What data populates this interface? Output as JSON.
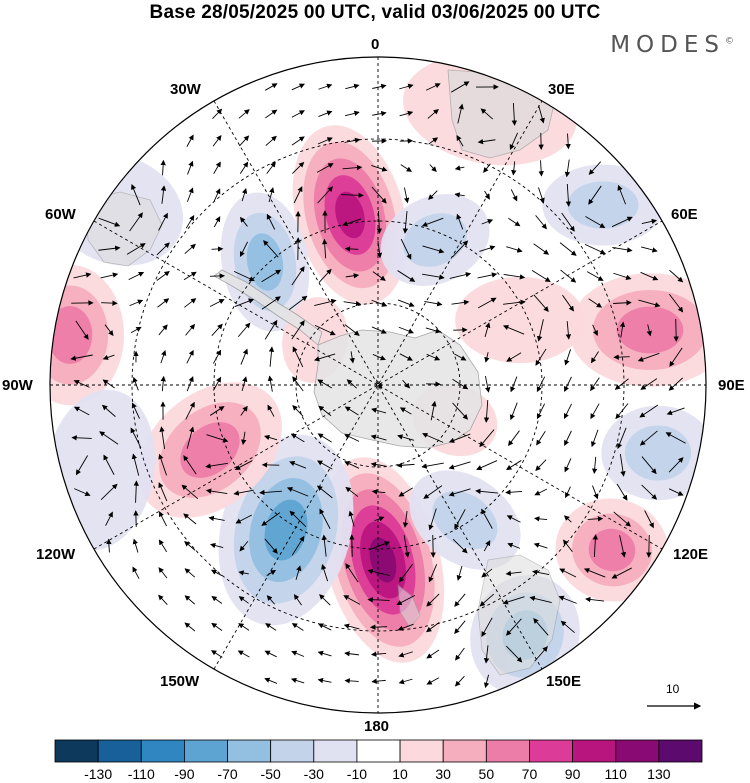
{
  "header": {
    "title": "Base 28/05/2025 00 UTC, valid 03/06/2025 00 UTC",
    "brand": "MODES",
    "brand_mark": "©"
  },
  "map": {
    "projection": "south-polar-stereographic",
    "longitude_labels": {
      "lon_0": "0",
      "lon_30e": "30E",
      "lon_60e": "60E",
      "lon_90e": "90E",
      "lon_120e": "120E",
      "lon_150e": "150E",
      "lon_180": "180",
      "lon_150w": "150W",
      "lon_120w": "120W",
      "lon_90w": "90W",
      "lon_60w": "60W",
      "lon_30w": "30W"
    },
    "vector_scale_label": "10",
    "grid": true
  },
  "colorbar": {
    "colors": [
      "#0d3a5c",
      "#17609a",
      "#2f86c0",
      "#5ea4d2",
      "#93bfe0",
      "#c2d3ea",
      "#e1e2f1",
      "#ffffff",
      "#fbd9dc",
      "#f5aebd",
      "#ec7ca8",
      "#dc3c97",
      "#b9157f",
      "#8a0a74",
      "#5c0a6e"
    ],
    "labels": [
      "-130",
      "-110",
      "-90",
      "-70",
      "-50",
      "-30",
      "-10",
      "10",
      "30",
      "50",
      "70",
      "90",
      "110",
      "130"
    ]
  }
}
